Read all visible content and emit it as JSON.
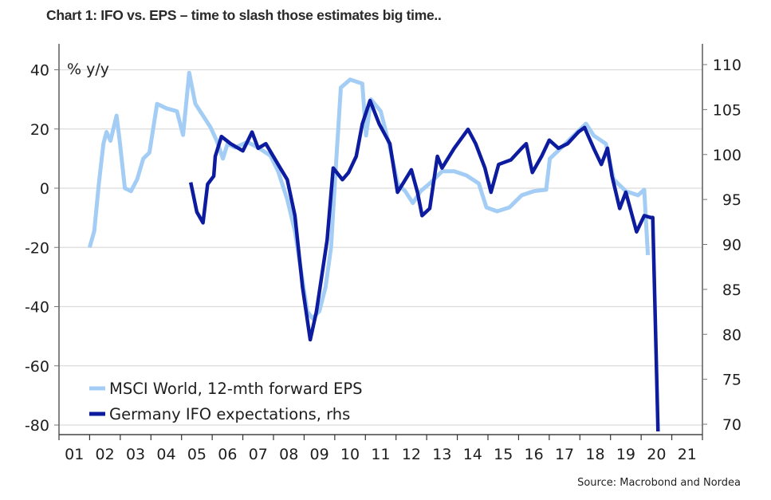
{
  "title": "Chart 1: IFO vs. EPS – time to slash those estimates big time..",
  "source": "Source: Macrobond and Nordea",
  "chart_data": {
    "type": "line",
    "title": "Chart 1: IFO vs. EPS – time to slash those estimates big time..",
    "xlabel": "",
    "ylabel": "% y/y",
    "ylabel_right": "",
    "x_range": [
      2001,
      2022
    ],
    "x_tick_labels": [
      "01",
      "02",
      "03",
      "04",
      "05",
      "06",
      "07",
      "08",
      "09",
      "10",
      "11",
      "12",
      "13",
      "14",
      "15",
      "16",
      "17",
      "18",
      "19",
      "20",
      "21"
    ],
    "ylim": [
      -80,
      40
    ],
    "y_ticks": [
      40,
      20,
      0,
      -20,
      -40,
      -60,
      -80
    ],
    "ylim_right": [
      70,
      110
    ],
    "y_ticks_right": [
      110,
      105,
      100,
      95,
      90,
      85,
      80,
      75,
      70
    ],
    "grid": true,
    "legend_position": "bottom-left",
    "colors": {
      "eps": "#a3cdf5",
      "ifo": "#0d1c9e"
    },
    "series": [
      {
        "name": "MSCI World, 12-mth forward EPS",
        "axis": "left",
        "x": [
          2002.0,
          2002.15,
          2002.3,
          2002.45,
          2002.55,
          2002.68,
          2002.88,
          2002.98,
          2003.15,
          2003.35,
          2003.55,
          2003.75,
          2003.95,
          2004.2,
          2004.5,
          2004.85,
          2005.05,
          2005.25,
          2005.45,
          2005.7,
          2005.95,
          2006.15,
          2006.35,
          2006.5,
          2006.75,
          2007.15,
          2007.5,
          2007.9,
          2008.15,
          2008.45,
          2008.7,
          2008.9,
          2009.1,
          2009.27,
          2009.5,
          2009.7,
          2009.88,
          2010.0,
          2010.2,
          2010.5,
          2010.9,
          2011.02,
          2011.18,
          2011.5,
          2011.8,
          2012.05,
          2012.3,
          2012.55,
          2012.8,
          2013.1,
          2013.5,
          2013.9,
          2014.3,
          2014.7,
          2014.95,
          2015.3,
          2015.7,
          2016.1,
          2016.5,
          2016.9,
          2017.02,
          2017.4,
          2017.8,
          2018.2,
          2018.45,
          2018.85,
          2019.1,
          2019.5,
          2019.9,
          2020.1,
          2020.22
        ],
        "values": [
          -20,
          -14.5,
          1.5,
          15,
          19,
          16,
          24.5,
          16,
          0,
          -1,
          3,
          10,
          12,
          28.5,
          27,
          26,
          18,
          39,
          28.5,
          24.5,
          20.5,
          16,
          10,
          15,
          13.7,
          15.6,
          13.7,
          11,
          5.7,
          -3.8,
          -14.5,
          -28,
          -41.5,
          -44,
          -41.5,
          -33.4,
          -20,
          1.6,
          34,
          36.7,
          35.3,
          17.8,
          30,
          26,
          13.7,
          1.6,
          -1,
          -5,
          -1,
          1.6,
          5.7,
          5.7,
          4.3,
          1.6,
          -6.5,
          -7.8,
          -6.5,
          -2.4,
          -1,
          -0.5,
          10,
          13.7,
          17.8,
          21.8,
          17.8,
          15,
          3,
          -1,
          -2.4,
          -0.5,
          -22.6
        ]
      },
      {
        "name": "Germany IFO expectations, rhs",
        "axis": "right",
        "x": [
          2005.3,
          2005.5,
          2005.7,
          2005.85,
          2006.05,
          2006.1,
          2006.3,
          2006.6,
          2007.0,
          2007.3,
          2007.5,
          2007.75,
          2008.15,
          2008.45,
          2008.7,
          2008.95,
          2009.2,
          2009.4,
          2009.75,
          2009.95,
          2010.25,
          2010.45,
          2010.7,
          2010.9,
          2011.15,
          2011.45,
          2011.8,
          2012.05,
          2012.25,
          2012.5,
          2012.7,
          2012.85,
          2013.1,
          2013.35,
          2013.5,
          2013.9,
          2014.35,
          2014.6,
          2014.9,
          2015.1,
          2015.35,
          2015.75,
          2016.1,
          2016.25,
          2016.45,
          2016.75,
          2017.0,
          2017.3,
          2017.6,
          2017.95,
          2018.15,
          2018.45,
          2018.7,
          2018.9,
          2019.05,
          2019.3,
          2019.5,
          2019.85,
          2020.1,
          2020.3,
          2020.38,
          2020.55
        ],
        "values": [
          96.9,
          93.6,
          92.4,
          96.7,
          97.6,
          99.8,
          102.0,
          101.2,
          100.4,
          102.5,
          100.7,
          101.2,
          98.9,
          97.2,
          93.2,
          85.2,
          79.4,
          82.5,
          90.5,
          98.5,
          97.2,
          98.0,
          99.8,
          103.4,
          106.0,
          103.4,
          101.2,
          95.8,
          96.9,
          98.3,
          95.8,
          93.2,
          94.0,
          99.8,
          98.5,
          100.7,
          102.8,
          101.2,
          98.5,
          95.8,
          98.9,
          99.4,
          100.7,
          101.2,
          98.0,
          99.8,
          101.6,
          100.7,
          101.2,
          102.5,
          103.0,
          100.7,
          98.9,
          100.7,
          97.6,
          94.0,
          95.8,
          91.4,
          93.2,
          93.0,
          93.0,
          69.2
        ]
      }
    ],
    "legend": [
      "MSCI World, 12-mth forward EPS",
      "Germany IFO expectations, rhs"
    ]
  }
}
